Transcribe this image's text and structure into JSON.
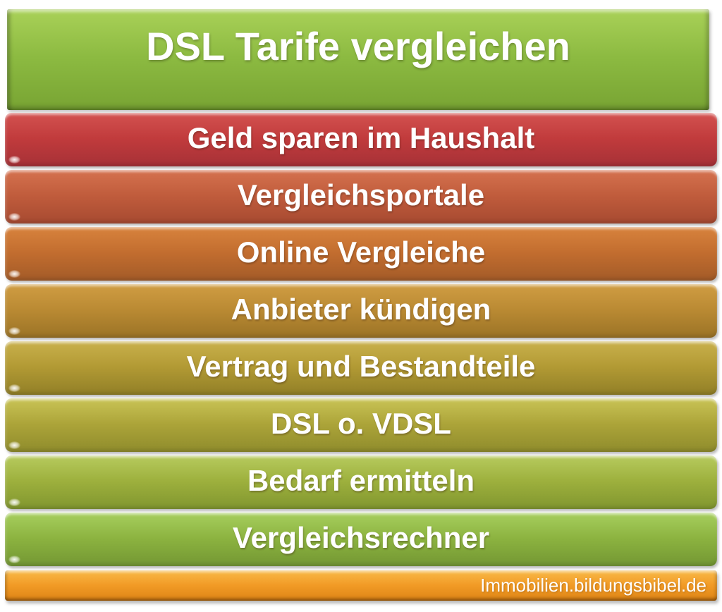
{
  "colors": {
    "background": "#FFFFFF",
    "text": "#FFFFFF"
  },
  "title": {
    "label": "DSL Tarife vergleichen",
    "gradient": {
      "top": "#A9D158",
      "mid": "#8CBA41",
      "bottom": "#78A433"
    }
  },
  "bars": [
    {
      "label": "Geld sparen im Haushalt",
      "gradient": {
        "top": "#D35250",
        "mid": "#C13B3C",
        "bottom": "#A63137"
      }
    },
    {
      "label": "Vergleichsportale",
      "gradient": {
        "top": "#D5724F",
        "mid": "#C05C3C",
        "bottom": "#A74A31"
      }
    },
    {
      "label": "Online Vergleiche",
      "gradient": {
        "top": "#D8833D",
        "mid": "#C26D2F",
        "bottom": "#A35B28"
      }
    },
    {
      "label": "Anbieter kündigen",
      "gradient": {
        "top": "#D09D43",
        "mid": "#BA8A33",
        "bottom": "#9B7326"
      }
    },
    {
      "label": "Vertrag und Bestandteile",
      "gradient": {
        "top": "#C9B04C",
        "mid": "#B29A34",
        "bottom": "#917F27"
      }
    },
    {
      "label": "DSL o. VDSL",
      "gradient": {
        "top": "#C9C456",
        "mid": "#ACA439",
        "bottom": "#8F8C2C"
      }
    },
    {
      "label": "Bedarf ermitteln",
      "gradient": {
        "top": "#B7CB5E",
        "mid": "#9DB03D",
        "bottom": "#81962F"
      }
    },
    {
      "label": "Vergleichsrechner",
      "gradient": {
        "top": "#A7CF5E",
        "mid": "#8CB340",
        "bottom": "#739733"
      }
    }
  ],
  "footer": {
    "label": "Immobilien.bildungsbibel.de",
    "gradient": {
      "top": "#F8BA49",
      "mid": "#F29B26",
      "bottom": "#DD8416"
    }
  }
}
